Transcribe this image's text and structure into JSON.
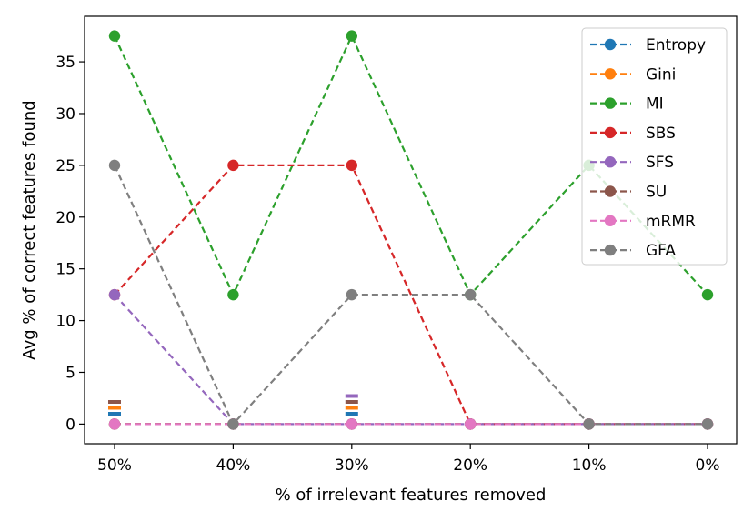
{
  "chart_data": {
    "type": "line",
    "title": "",
    "xlabel": "% of irrelevant features removed",
    "ylabel": "Avg % of correct features found",
    "categories": [
      "50%",
      "40%",
      "30%",
      "20%",
      "10%",
      "0%"
    ],
    "y_ticks": [
      0,
      5,
      10,
      15,
      20,
      25,
      30,
      35
    ],
    "ylim": [
      -1.9,
      39.4
    ],
    "grid": false,
    "legend_position": "top-right",
    "line_style": "dashed",
    "marker": "circle",
    "series": [
      {
        "name": "Entropy",
        "color": "#1f77b4",
        "values": [
          0,
          0,
          0,
          0,
          0,
          0
        ]
      },
      {
        "name": "Gini",
        "color": "#ff7f0e",
        "values": [
          0,
          0,
          0,
          0,
          0,
          0
        ]
      },
      {
        "name": "MI",
        "color": "#2ca02c",
        "values": [
          37.5,
          12.5,
          37.5,
          12.5,
          25,
          12.5
        ]
      },
      {
        "name": "SBS",
        "color": "#d62728",
        "values": [
          12.5,
          25,
          25,
          0,
          0,
          0
        ]
      },
      {
        "name": "SFS",
        "color": "#9467bd",
        "values": [
          12.5,
          0,
          0,
          0,
          0,
          0
        ]
      },
      {
        "name": "SU",
        "color": "#8c564b",
        "values": [
          0,
          0,
          0,
          0,
          0,
          0
        ]
      },
      {
        "name": "mRMR",
        "color": "#e377c2",
        "values": [
          0,
          0,
          0,
          0,
          0,
          0
        ]
      },
      {
        "name": "GFA",
        "color": "#7f7f7f",
        "values": [
          25,
          0,
          12.5,
          12.5,
          0,
          0
        ]
      }
    ]
  }
}
